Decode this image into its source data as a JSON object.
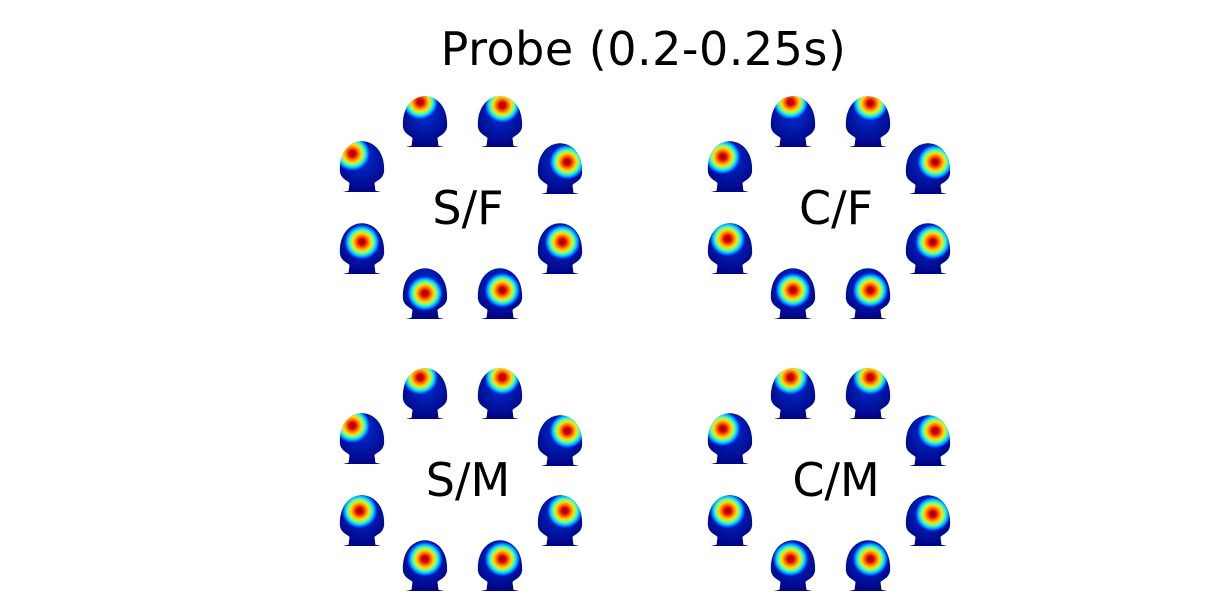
{
  "title": "Probe (0.2-0.25s)",
  "colormap": "jet",
  "colors": {
    "background": "#ffffff",
    "text": "#000000",
    "head_base": "#00008f"
  },
  "conditions": [
    {
      "label": "S/F",
      "heads": [
        {
          "view": "left",
          "hot": [
            0.3,
            0.4
          ]
        },
        {
          "view": "left-front",
          "hot": [
            0.4,
            0.3
          ]
        },
        {
          "view": "right-front",
          "hot": [
            0.55,
            0.35
          ]
        },
        {
          "view": "right",
          "hot": [
            0.65,
            0.5
          ]
        },
        {
          "view": "right-back",
          "hot": [
            0.55,
            0.5
          ]
        },
        {
          "view": "back-right",
          "hot": [
            0.55,
            0.55
          ]
        },
        {
          "view": "back-left",
          "hot": [
            0.5,
            0.6
          ]
        },
        {
          "view": "left-back",
          "hot": [
            0.5,
            0.5
          ]
        }
      ]
    },
    {
      "label": "C/F",
      "heads": [
        {
          "view": "left",
          "hot": [
            0.35,
            0.45
          ]
        },
        {
          "view": "left-front",
          "hot": [
            0.45,
            0.3
          ]
        },
        {
          "view": "right-front",
          "hot": [
            0.55,
            0.32
          ]
        },
        {
          "view": "right",
          "hot": [
            0.65,
            0.5
          ]
        },
        {
          "view": "right-back",
          "hot": [
            0.6,
            0.5
          ]
        },
        {
          "view": "back-right",
          "hot": [
            0.55,
            0.55
          ]
        },
        {
          "view": "back-left",
          "hot": [
            0.5,
            0.55
          ]
        },
        {
          "view": "left-back",
          "hot": [
            0.45,
            0.45
          ]
        }
      ]
    },
    {
      "label": "S/M",
      "heads": [
        {
          "view": "left",
          "hot": [
            0.3,
            0.4
          ]
        },
        {
          "view": "left-front",
          "hot": [
            0.4,
            0.35
          ]
        },
        {
          "view": "right-front",
          "hot": [
            0.55,
            0.35
          ]
        },
        {
          "view": "right",
          "hot": [
            0.65,
            0.45
          ]
        },
        {
          "view": "right-back",
          "hot": [
            0.6,
            0.45
          ]
        },
        {
          "view": "back-right",
          "hot": [
            0.55,
            0.5
          ]
        },
        {
          "view": "back-left",
          "hot": [
            0.5,
            0.5
          ]
        },
        {
          "view": "left-back",
          "hot": [
            0.45,
            0.45
          ]
        }
      ]
    },
    {
      "label": "C/M",
      "heads": [
        {
          "view": "left",
          "hot": [
            0.35,
            0.45
          ]
        },
        {
          "view": "left-front",
          "hot": [
            0.45,
            0.35
          ]
        },
        {
          "view": "right-front",
          "hot": [
            0.55,
            0.35
          ]
        },
        {
          "view": "right",
          "hot": [
            0.65,
            0.45
          ]
        },
        {
          "view": "right-back",
          "hot": [
            0.6,
            0.5
          ]
        },
        {
          "view": "back-right",
          "hot": [
            0.55,
            0.5
          ]
        },
        {
          "view": "back-left",
          "hot": [
            0.45,
            0.5
          ]
        },
        {
          "view": "left-back",
          "hot": [
            0.45,
            0.45
          ]
        }
      ]
    }
  ]
}
